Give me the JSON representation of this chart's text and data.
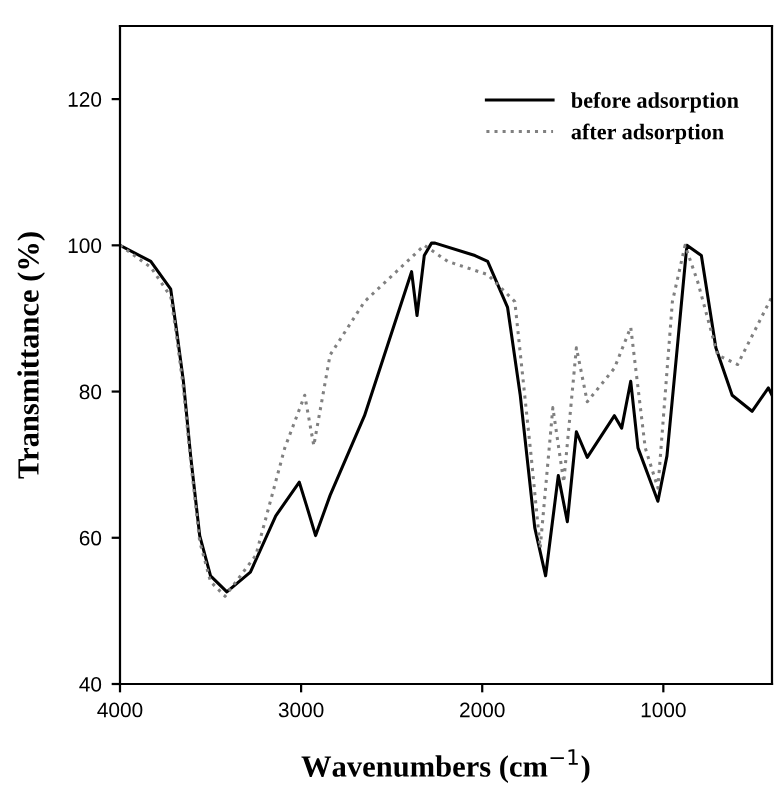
{
  "chart_data": {
    "type": "line",
    "xlabel": "Wavenumbers (cm$^{−1}$)",
    "ylabel": "Transmittance (%)",
    "xlim": [
      4000,
      400
    ],
    "ylim": [
      40,
      130
    ],
    "xticks": [
      4000,
      3000,
      2000,
      1000
    ],
    "yticks": [
      40,
      60,
      80,
      100,
      120
    ],
    "legend": "top right",
    "grid": false,
    "series": [
      {
        "name": "before adsorption",
        "color": "#000000",
        "line_style": "solid",
        "x": [
          4000,
          3830,
          3720,
          3690,
          3650,
          3610,
          3560,
          3500,
          3410,
          3280,
          3140,
          3010,
          2970,
          2920,
          2840,
          2650,
          2390,
          2360,
          2320,
          2280,
          2260,
          2040,
          1970,
          1860,
          1790,
          1710,
          1650,
          1580,
          1530,
          1480,
          1420,
          1270,
          1230,
          1180,
          1140,
          1030,
          980,
          920,
          870,
          790,
          710,
          620,
          510,
          420,
          400
        ],
        "values": [
          100,
          97.8,
          94,
          88.8,
          81.4,
          71.2,
          60.3,
          54.8,
          52.6,
          55.3,
          63,
          67.6,
          64.4,
          60.3,
          65.8,
          76.7,
          96.4,
          90.4,
          98.6,
          100.3,
          100.3,
          98.6,
          97.8,
          91.5,
          79.5,
          61.4,
          54.8,
          68.5,
          62.2,
          74.5,
          71,
          76.7,
          75,
          81.4,
          72.3,
          65,
          71.2,
          86.8,
          100,
          98.6,
          86,
          79.5,
          77.3,
          80.5,
          79.5
        ]
      },
      {
        "name": "after adsorption",
        "color": "#808080",
        "line_style": "dotted",
        "x": [
          4000,
          3830,
          3720,
          3690,
          3650,
          3610,
          3560,
          3500,
          3420,
          3250,
          3090,
          2980,
          2930,
          2840,
          2650,
          2320,
          2190,
          1970,
          1820,
          1730,
          1680,
          1610,
          1550,
          1480,
          1420,
          1270,
          1180,
          1100,
          1030,
          950,
          880,
          810,
          700,
          590,
          400
        ],
        "values": [
          100,
          97,
          93,
          88,
          80.5,
          70.5,
          59.5,
          54,
          52,
          57.6,
          72.3,
          79.5,
          72.6,
          85,
          92.3,
          100,
          97.8,
          96,
          92.3,
          71.2,
          58.6,
          77.8,
          67.6,
          86,
          78.6,
          83.2,
          88.8,
          72.3,
          66.8,
          92.3,
          100,
          95,
          85,
          83.7,
          93
        ]
      }
    ]
  }
}
